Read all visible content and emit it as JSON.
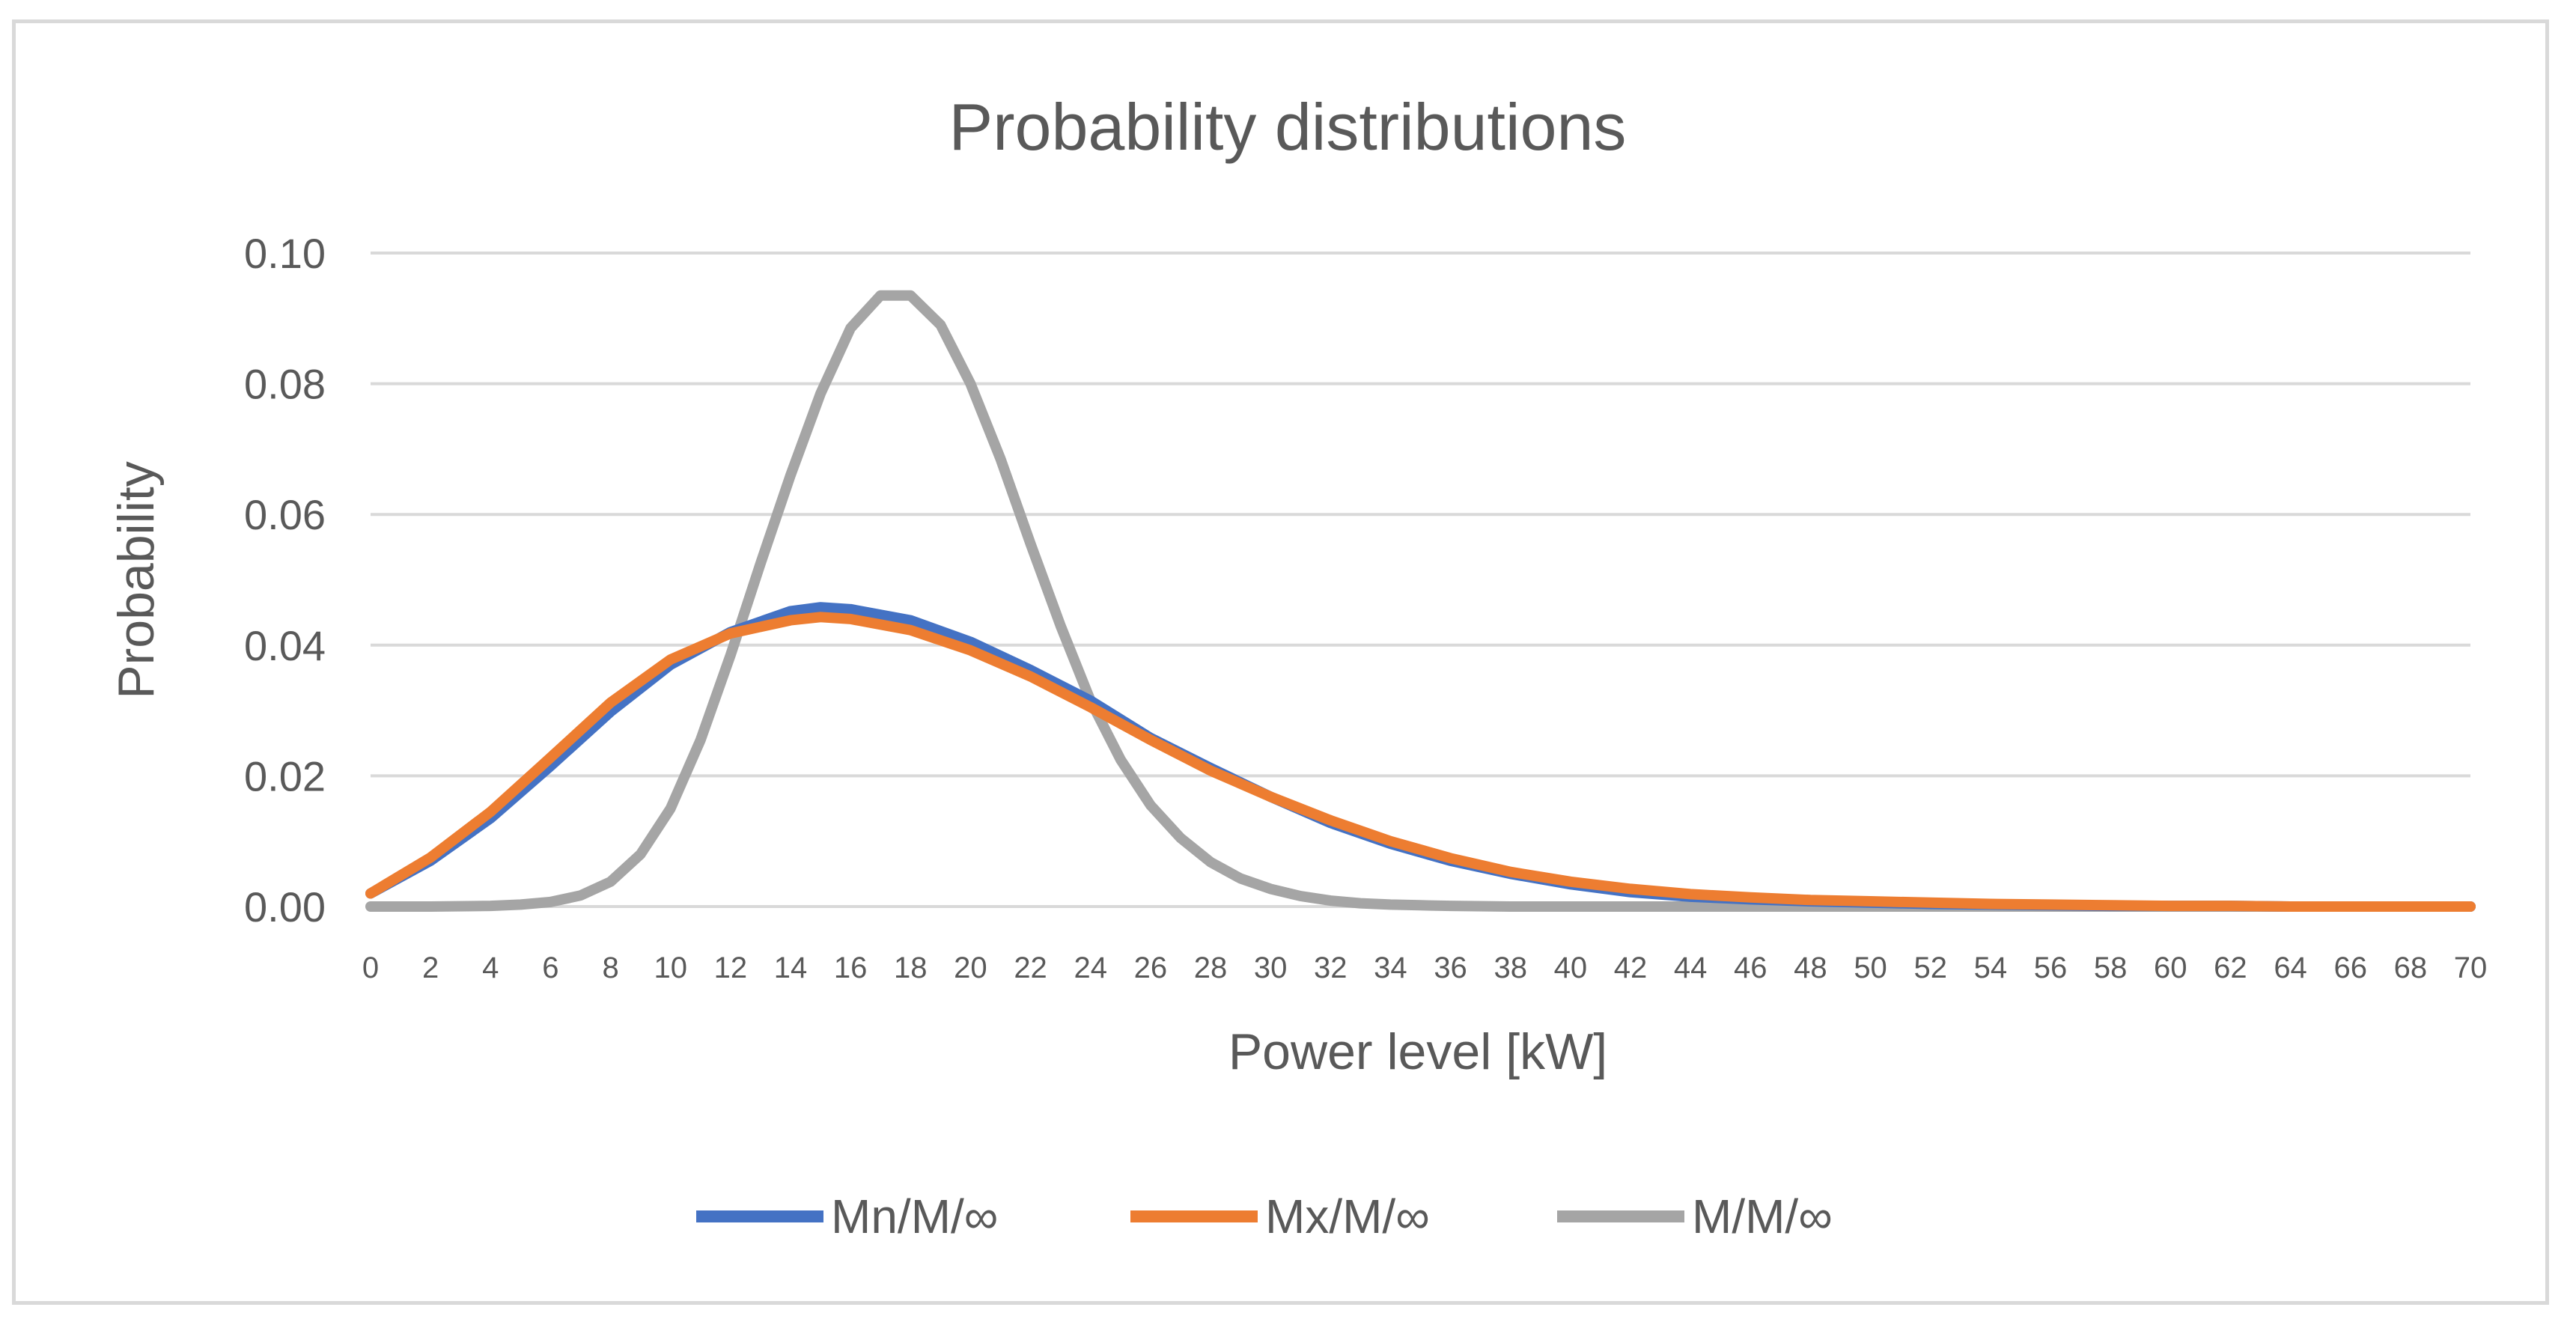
{
  "chart_data": {
    "type": "line",
    "title": "Probability distributions",
    "xlabel": "Power level [kW]",
    "ylabel": "Probability",
    "xlim": [
      0,
      70
    ],
    "ylim": [
      0,
      0.1
    ],
    "y_ticks": [
      "0.00",
      "0.02",
      "0.04",
      "0.06",
      "0.08",
      "0.10"
    ],
    "x_ticks": [
      "0",
      "2",
      "4",
      "6",
      "8",
      "10",
      "12",
      "14",
      "16",
      "18",
      "20",
      "22",
      "24",
      "26",
      "28",
      "30",
      "32",
      "34",
      "36",
      "38",
      "40",
      "42",
      "44",
      "46",
      "48",
      "50",
      "52",
      "54",
      "56",
      "58",
      "60",
      "62",
      "64",
      "66",
      "68",
      "70"
    ],
    "grid": true,
    "legend_position": "bottom",
    "series": [
      {
        "name": "Mn/M/∞",
        "color": "#4472c4",
        "x": [
          0,
          2,
          4,
          6,
          8,
          10,
          12,
          14,
          15,
          16,
          18,
          20,
          22,
          24,
          26,
          28,
          30,
          32,
          34,
          36,
          38,
          40,
          42,
          44,
          46,
          48,
          50,
          52,
          54,
          56,
          58,
          60,
          62,
          64,
          66,
          68,
          70
        ],
        "values": [
          0.002,
          0.007,
          0.0135,
          0.0215,
          0.0298,
          0.037,
          0.042,
          0.0452,
          0.0458,
          0.0455,
          0.0438,
          0.0405,
          0.0362,
          0.0315,
          0.0258,
          0.0212,
          0.0168,
          0.0128,
          0.0096,
          0.007,
          0.005,
          0.0034,
          0.0022,
          0.0015,
          0.0011,
          0.0008,
          0.0006,
          0.0004,
          0.0003,
          0.0002,
          0.0001,
          0.0001,
          0.0001,
          0.0,
          0.0,
          0.0,
          0.0
        ]
      },
      {
        "name": "Mx/M/∞",
        "color": "#ed7d31",
        "x": [
          0,
          2,
          4,
          6,
          8,
          10,
          12,
          14,
          15,
          16,
          18,
          20,
          22,
          24,
          26,
          28,
          30,
          32,
          34,
          36,
          38,
          40,
          42,
          44,
          46,
          48,
          50,
          52,
          54,
          56,
          58,
          60,
          62,
          64,
          66,
          68,
          70
        ],
        "values": [
          0.002,
          0.0075,
          0.0145,
          0.0228,
          0.0312,
          0.0378,
          0.0418,
          0.0438,
          0.0443,
          0.044,
          0.0423,
          0.0392,
          0.0352,
          0.0305,
          0.0255,
          0.0208,
          0.0168,
          0.0132,
          0.01,
          0.0074,
          0.0053,
          0.0038,
          0.0027,
          0.0019,
          0.0014,
          0.001,
          0.0008,
          0.0006,
          0.0004,
          0.0003,
          0.0002,
          0.0001,
          0.0001,
          0.0,
          0.0,
          0.0,
          0.0
        ]
      },
      {
        "name": "M/M/∞",
        "color": "#a5a5a5",
        "x": [
          0,
          2,
          4,
          5,
          6,
          7,
          8,
          9,
          10,
          11,
          12,
          13,
          14,
          15,
          16,
          17,
          18,
          19,
          20,
          21,
          22,
          23,
          24,
          25,
          26,
          27,
          28,
          29,
          30,
          31,
          32,
          33,
          34,
          35,
          36,
          38,
          40,
          45,
          50,
          55,
          60,
          65,
          70
        ],
        "values": [
          0.0,
          0.0,
          0.0001,
          0.0003,
          0.0007,
          0.0017,
          0.0038,
          0.008,
          0.015,
          0.0255,
          0.0385,
          0.0525,
          0.066,
          0.0785,
          0.0885,
          0.0935,
          0.0935,
          0.089,
          0.08,
          0.0685,
          0.0555,
          0.043,
          0.0315,
          0.0225,
          0.0155,
          0.0105,
          0.0068,
          0.0043,
          0.0027,
          0.0016,
          0.0009,
          0.0005,
          0.0003,
          0.0002,
          0.0001,
          0.0,
          0.0,
          0.0,
          0.0,
          0.0,
          0.0,
          0.0,
          0.0
        ]
      }
    ]
  }
}
